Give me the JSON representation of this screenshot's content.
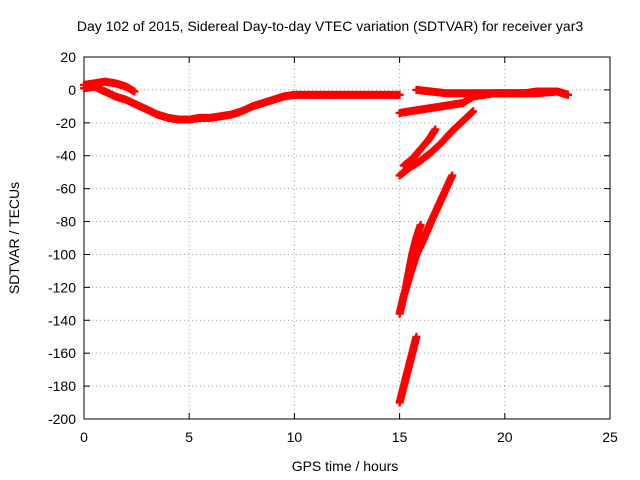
{
  "chart_data": {
    "type": "scatter",
    "title": "Day 102 of 2015, Sidereal Day-to-day VTEC variation (SDTVAR) for receiver yar3",
    "xlabel": "GPS time / hours",
    "ylabel": "SDTVAR / TECUs",
    "xlim": [
      0,
      25
    ],
    "ylim": [
      -200,
      20
    ],
    "xticks": [
      0,
      5,
      10,
      15,
      20,
      25
    ],
    "yticks": [
      20,
      0,
      -20,
      -40,
      -60,
      -80,
      -100,
      -120,
      -140,
      -160,
      -180,
      -200
    ],
    "grid": true,
    "series_color": "#ff0000",
    "series": [
      {
        "x": [
          0.0,
          0.5,
          1.0,
          1.5,
          2.0,
          2.5,
          3.0,
          3.5,
          4.0,
          4.5,
          5.0,
          5.5,
          6.0,
          6.5,
          7.0,
          7.5,
          8.0,
          8.5,
          9.0,
          9.5,
          10.0,
          10.5,
          11.0,
          11.5,
          12.0,
          12.5,
          13.0,
          13.5,
          14.0,
          14.5,
          15.0
        ],
        "y": [
          1,
          2,
          -1,
          -4,
          -6,
          -9,
          -12,
          -15,
          -17,
          -18,
          -18,
          -17,
          -17,
          -16,
          -15,
          -13,
          -10,
          -8,
          -6,
          -4,
          -3,
          -3,
          -3,
          -3,
          -3,
          -3,
          -3,
          -3,
          -3,
          -3,
          -3
        ]
      },
      {
        "x": [
          0.0,
          0.5,
          1.0,
          1.5,
          2.0,
          2.4
        ],
        "y": [
          3,
          4,
          5,
          4,
          2,
          -1
        ]
      },
      {
        "x": [
          15.0,
          15.5,
          16.0,
          16.5,
          17.0,
          17.5,
          18.0,
          18.5,
          19.0,
          19.5,
          20.0,
          20.5,
          21.0,
          21.5,
          22.0,
          22.5,
          23.0
        ],
        "y": [
          -14,
          -13,
          -12,
          -11,
          -10,
          -9,
          -8,
          -4,
          -3,
          -2,
          -2,
          -2,
          -2,
          -1,
          -1,
          -1,
          -3
        ]
      },
      {
        "x": [
          15.8,
          16.5,
          17.2,
          17.8,
          18.5,
          19.0,
          19.5,
          20.5,
          21.5,
          22.5,
          23.0
        ],
        "y": [
          0,
          -1,
          -2,
          -2,
          -2,
          -2,
          -2,
          -2,
          -2,
          -1,
          -3
        ]
      },
      {
        "x": [
          15.0,
          15.5,
          16.0,
          16.5,
          17.0,
          17.5,
          18.0,
          18.5
        ],
        "y": [
          -52,
          -47,
          -43,
          -38,
          -32,
          -25,
          -19,
          -13
        ]
      },
      {
        "x": [
          15.2,
          15.6,
          16.0,
          16.4,
          16.7
        ],
        "y": [
          -46,
          -42,
          -36,
          -30,
          -24
        ]
      },
      {
        "x": [
          15.0,
          15.2,
          15.5,
          15.8,
          16.1,
          16.5,
          17.0,
          17.5
        ],
        "y": [
          -136,
          -125,
          -112,
          -100,
          -92,
          -80,
          -66,
          -52
        ]
      },
      {
        "x": [
          15.3,
          15.6,
          15.8,
          16.0
        ],
        "y": [
          -120,
          -100,
          -90,
          -82
        ]
      },
      {
        "x": [
          15.0,
          15.2,
          15.4,
          15.6,
          15.8
        ],
        "y": [
          -190,
          -180,
          -170,
          -160,
          -150
        ]
      }
    ]
  }
}
